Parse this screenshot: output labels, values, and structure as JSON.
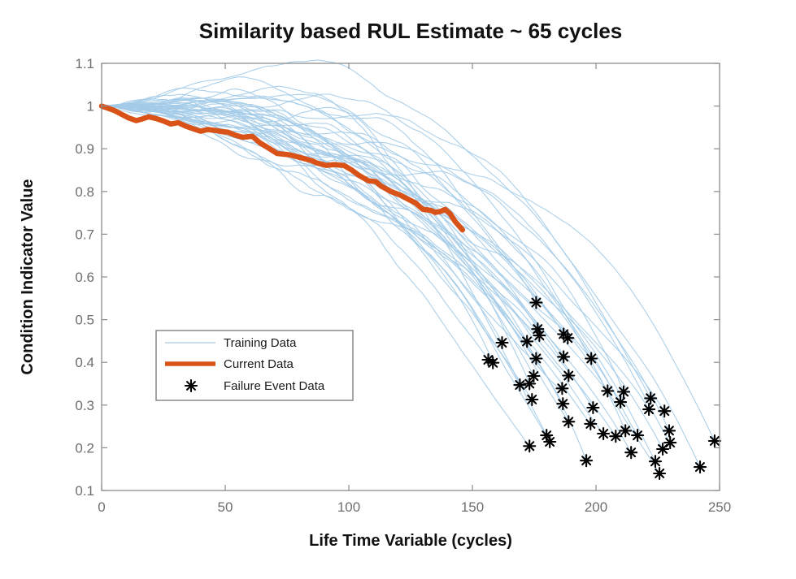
{
  "page": {
    "background": "#ffffff"
  },
  "chart_data": {
    "type": "line",
    "title": "Similarity based RUL Estimate ~ 65 cycles",
    "xlabel": "Life Time Variable (cycles)",
    "ylabel": "Condition Indicator Value",
    "xlim": [
      0,
      250
    ],
    "ylim": [
      0.1,
      1.1
    ],
    "grid": false,
    "xticks": [
      {
        "value": 0,
        "label": "0"
      },
      {
        "value": 50,
        "label": "50"
      },
      {
        "value": 100,
        "label": "100"
      },
      {
        "value": 150,
        "label": "150"
      },
      {
        "value": 200,
        "label": "200"
      },
      {
        "value": 250,
        "label": "250"
      }
    ],
    "yticks": [
      {
        "value": 0.1,
        "label": "0.1"
      },
      {
        "value": 0.2,
        "label": "0.2"
      },
      {
        "value": 0.3,
        "label": "0.3"
      },
      {
        "value": 0.4,
        "label": "0.4"
      },
      {
        "value": 0.5,
        "label": "0.5"
      },
      {
        "value": 0.6,
        "label": "0.6"
      },
      {
        "value": 0.7,
        "label": "0.7"
      },
      {
        "value": 0.8,
        "label": "0.8"
      },
      {
        "value": 0.9,
        "label": "0.9"
      },
      {
        "value": 1.0,
        "label": "1"
      },
      {
        "value": 1.1,
        "label": "1.1"
      }
    ],
    "colors": {
      "axis": "#8c8c8c",
      "tick_label": "#6e6e6e",
      "training": "#A3CBE8",
      "current": "#D95319",
      "failure_marker": "#000000"
    },
    "legend": {
      "position": "inside-left",
      "border_color": "#7f7f7f",
      "background": "#ffffff",
      "entries": [
        {
          "label": "Training Data",
          "marker": "thin-line",
          "color": "#A3CBE8"
        },
        {
          "label": "Current Data",
          "marker": "thick-line",
          "color": "#D95319"
        },
        {
          "label": "Failure Event Data",
          "marker": "asterisk",
          "color": "#000000"
        }
      ]
    },
    "series": {
      "current_data": {
        "name": "Current Data",
        "color": "#D95319",
        "line_width": 6.5,
        "x": [
          0,
          2,
          5,
          8,
          11,
          14,
          16,
          19,
          22,
          25,
          28,
          31,
          34,
          37,
          40,
          43,
          46,
          49,
          51,
          54,
          57,
          61,
          64,
          68,
          71,
          76,
          80,
          85,
          87,
          91,
          94,
          98,
          101,
          104,
          108,
          111,
          113,
          117,
          121,
          123,
          127,
          130,
          133,
          135,
          137,
          139,
          141,
          143,
          146
        ],
        "y": [
          1.0,
          0.996,
          0.99,
          0.981,
          0.972,
          0.966,
          0.969,
          0.975,
          0.971,
          0.965,
          0.958,
          0.961,
          0.953,
          0.947,
          0.941,
          0.945,
          0.943,
          0.94,
          0.939,
          0.932,
          0.927,
          0.929,
          0.914,
          0.9,
          0.889,
          0.886,
          0.88,
          0.872,
          0.867,
          0.861,
          0.863,
          0.861,
          0.851,
          0.838,
          0.825,
          0.823,
          0.813,
          0.8,
          0.791,
          0.785,
          0.773,
          0.758,
          0.756,
          0.751,
          0.753,
          0.758,
          0.748,
          0.73,
          0.71
        ]
      },
      "failure_events": {
        "name": "Failure Event Data",
        "marker": "asterisk",
        "color": "#000000",
        "points": [
          [
            156.4,
            0.406
          ],
          [
            158.3,
            0.399
          ],
          [
            162.0,
            0.446
          ],
          [
            169.2,
            0.347
          ],
          [
            172.1,
            0.449
          ],
          [
            173.1,
            0.35
          ],
          [
            173.1,
            0.204
          ],
          [
            174.1,
            0.313
          ],
          [
            174.8,
            0.368
          ],
          [
            175.8,
            0.54
          ],
          [
            175.8,
            0.409
          ],
          [
            176.4,
            0.478
          ],
          [
            177.1,
            0.463
          ],
          [
            180.0,
            0.229
          ],
          [
            181.3,
            0.214
          ],
          [
            186.3,
            0.339
          ],
          [
            186.6,
            0.303
          ],
          [
            186.9,
            0.466
          ],
          [
            186.9,
            0.413
          ],
          [
            188.6,
            0.457
          ],
          [
            188.9,
            0.369
          ],
          [
            188.9,
            0.261
          ],
          [
            196.1,
            0.17
          ],
          [
            197.8,
            0.256
          ],
          [
            198.1,
            0.409
          ],
          [
            198.8,
            0.294
          ],
          [
            203.0,
            0.233
          ],
          [
            204.7,
            0.333
          ],
          [
            208.0,
            0.227
          ],
          [
            209.9,
            0.307
          ],
          [
            211.2,
            0.331
          ],
          [
            211.9,
            0.24
          ],
          [
            214.2,
            0.189
          ],
          [
            216.8,
            0.229
          ],
          [
            221.4,
            0.29
          ],
          [
            222.1,
            0.316
          ],
          [
            224.0,
            0.168
          ],
          [
            225.7,
            0.14
          ],
          [
            227.0,
            0.197
          ],
          [
            227.7,
            0.286
          ],
          [
            229.6,
            0.24
          ],
          [
            230.0,
            0.212
          ],
          [
            242.1,
            0.155
          ],
          [
            248.0,
            0.216
          ]
        ]
      },
      "training_data": {
        "name": "Training Data",
        "color": "#A3CBE8",
        "line_width": 1.1,
        "count": 44,
        "start_value": 1.0,
        "endpoints_from": "failure_events"
      }
    }
  }
}
